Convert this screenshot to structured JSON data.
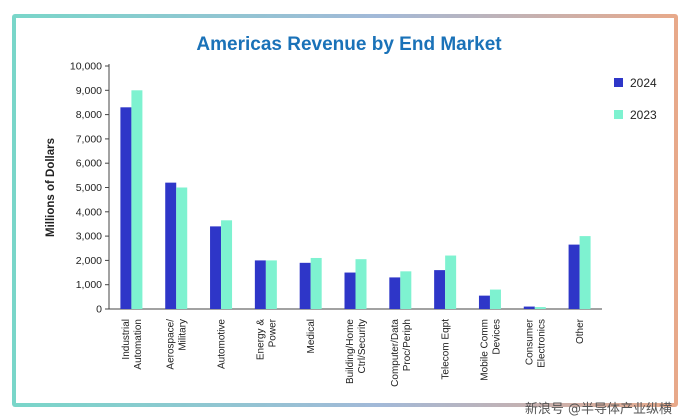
{
  "watermark": "新浪号 @半导体产业纵横",
  "colors": {
    "series_2024": "#2e36c8",
    "series_2023": "#7ef2d0",
    "title": "#1a72b8"
  },
  "chart_data": {
    "type": "bar",
    "title": "Americas Revenue by End Market",
    "xlabel": "",
    "ylabel": "Millions of Dollars",
    "ylim": [
      0,
      10000
    ],
    "yticks": [
      "0",
      "1,000",
      "2,000",
      "3,000",
      "4,000",
      "5,000",
      "6,000",
      "7,000",
      "8,000",
      "9,000",
      "10,000"
    ],
    "categories": [
      [
        "Industrial",
        "Automation"
      ],
      [
        "Aerospace/",
        "Military"
      ],
      [
        "Automotive"
      ],
      [
        "Energy &",
        "Power"
      ],
      [
        "Medical"
      ],
      [
        "Building/Home",
        "Ctrl/Security"
      ],
      [
        "Computer/Data",
        "Proc/Periph"
      ],
      [
        "Telecom Eqpt"
      ],
      [
        "Mobile Comm",
        "Devices"
      ],
      [
        "Consumer",
        "Electronics"
      ],
      [
        "Other"
      ]
    ],
    "series": [
      {
        "name": "2024",
        "values": [
          8300,
          5200,
          3400,
          2000,
          1900,
          1500,
          1300,
          1600,
          550,
          100,
          2650
        ]
      },
      {
        "name": "2023",
        "values": [
          9000,
          5000,
          3650,
          2000,
          2100,
          2050,
          1550,
          2200,
          800,
          80,
          3000
        ]
      }
    ],
    "grid": false,
    "legend": "right"
  }
}
